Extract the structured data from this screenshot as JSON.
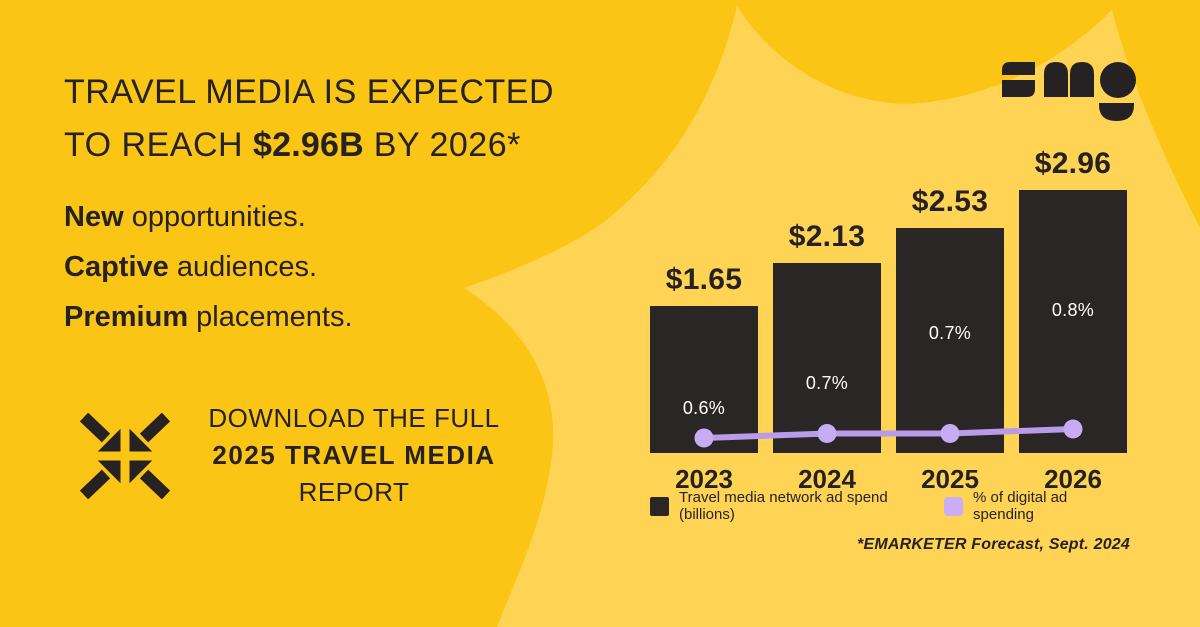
{
  "colors": {
    "background": "#FAC515",
    "blob": "#FFD454",
    "ink": "#262223",
    "bar": "#2A2626",
    "line": "#B89BE9",
    "dot": "#C7ABF3",
    "legend_purple": "#CBADF5",
    "pct_text": "#FFFFFF"
  },
  "logo": {
    "name": "SMG"
  },
  "headline": {
    "line1": "TRAVEL MEDIA IS EXPECTED",
    "line2_prefix": "TO REACH ",
    "line2_bold": "$2.96B",
    "line2_suffix": " BY 2026*"
  },
  "value_props": [
    {
      "bold": "New",
      "rest": " opportunities."
    },
    {
      "bold": "Captive",
      "rest": " audiences."
    },
    {
      "bold": "Premium",
      "rest": " placements."
    }
  ],
  "cta": {
    "line1": "DOWNLOAD THE FULL",
    "line2": "2025 TRAVEL MEDIA",
    "line3": "REPORT"
  },
  "chart_data": {
    "type": "bar",
    "title": "",
    "xlabel": "",
    "ylabel": "",
    "grid": false,
    "legend_position": "bottom",
    "categories": [
      "2023",
      "2024",
      "2025",
      "2026"
    ],
    "series": [
      {
        "name": "Travel media network ad spend (billions)",
        "type": "bar",
        "values": [
          1.65,
          2.13,
          2.53,
          2.96
        ],
        "value_labels": [
          "$1.65",
          "$2.13",
          "$2.53",
          "$2.96"
        ],
        "color": "#2A2626"
      },
      {
        "name": "% of digital ad spending",
        "type": "line",
        "values": [
          0.6,
          0.7,
          0.7,
          0.8
        ],
        "value_labels": [
          "0.6%",
          "0.7%",
          "0.7%",
          "0.8%"
        ],
        "color": "#B89BE9"
      }
    ],
    "legend": [
      {
        "label": "Travel media network ad spend (billions)",
        "color": "#2A2626"
      },
      {
        "label": "% of digital ad spending",
        "color": "#CBADF5"
      }
    ],
    "footnote": "*EMARKETER Forecast, Sept. 2024"
  }
}
